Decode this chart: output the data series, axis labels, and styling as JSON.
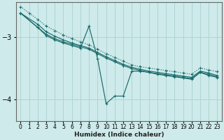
{
  "xlabel": "Humidex (Indice chaleur)",
  "bg_color": "#ceeaea",
  "line_color": "#1a6b6b",
  "grid_color": "#afd4d4",
  "xlim": [
    -0.5,
    23.5
  ],
  "ylim": [
    -4.35,
    -2.45
  ],
  "yticks": [
    -4,
    -3
  ],
  "xticks": [
    0,
    1,
    2,
    3,
    4,
    5,
    6,
    7,
    8,
    9,
    10,
    11,
    12,
    13,
    14,
    15,
    16,
    17,
    18,
    19,
    20,
    21,
    22,
    23
  ],
  "lines": [
    {
      "x": [
        0,
        1,
        2,
        3,
        4,
        5,
        6,
        7,
        8,
        9,
        10,
        11,
        12,
        13,
        14,
        15,
        16,
        17,
        18,
        19,
        20,
        21,
        22,
        23
      ],
      "y": [
        -2.52,
        -2.62,
        -2.72,
        -2.83,
        -2.9,
        -2.97,
        -3.03,
        -3.08,
        -3.13,
        -3.2,
        -3.27,
        -3.33,
        -3.39,
        -3.45,
        -3.48,
        -3.5,
        -3.52,
        -3.54,
        -3.56,
        -3.58,
        -3.6,
        -3.5,
        -3.53,
        -3.56
      ],
      "style": "dotted"
    },
    {
      "x": [
        0,
        2,
        3,
        4,
        5,
        6,
        7,
        8,
        9,
        10,
        11,
        12,
        13,
        14,
        15,
        16,
        17,
        18,
        19,
        20,
        21,
        22,
        23
      ],
      "y": [
        -2.62,
        -2.8,
        -2.92,
        -2.99,
        -3.05,
        -3.1,
        -3.14,
        -3.18,
        -3.25,
        -3.32,
        -3.38,
        -3.44,
        -3.49,
        -3.52,
        -3.55,
        -3.57,
        -3.59,
        -3.61,
        -3.63,
        -3.65,
        -3.55,
        -3.58,
        -3.62
      ],
      "style": "solid"
    },
    {
      "x": [
        0,
        2,
        3,
        4,
        5,
        6,
        7,
        8,
        9,
        10,
        11,
        12,
        13,
        14,
        15,
        16,
        17,
        18,
        19,
        20,
        21,
        22,
        23
      ],
      "y": [
        -2.62,
        -2.85,
        -2.96,
        -3.03,
        -3.08,
        -3.12,
        -3.16,
        -3.2,
        -3.27,
        -3.34,
        -3.4,
        -3.46,
        -3.51,
        -3.54,
        -3.57,
        -3.59,
        -3.61,
        -3.63,
        -3.65,
        -3.67,
        -3.57,
        -3.6,
        -3.64
      ],
      "style": "solid"
    },
    {
      "x": [
        0,
        2,
        3,
        4,
        5,
        6,
        7,
        8,
        9,
        10,
        11,
        12,
        13,
        14,
        15,
        16,
        17,
        18,
        19,
        20,
        21,
        22,
        23
      ],
      "y": [
        -2.62,
        -2.85,
        -2.98,
        -3.05,
        -3.1,
        -3.14,
        -3.18,
        -2.83,
        -3.35,
        -4.07,
        -3.95,
        -3.95,
        -3.55,
        -3.55,
        -3.57,
        -3.6,
        -3.62,
        -3.64,
        -3.66,
        -3.68,
        -3.57,
        -3.62,
        -3.65
      ],
      "style": "solid"
    }
  ]
}
